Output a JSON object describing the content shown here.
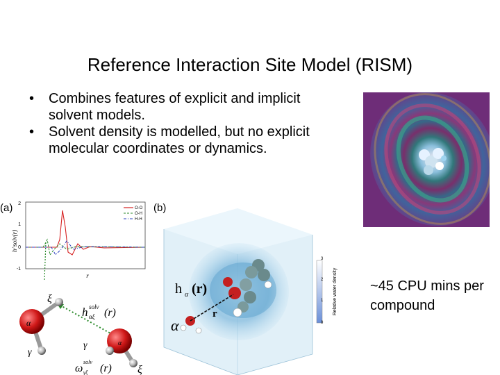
{
  "slide": {
    "title": "Reference Interaction Site Model (RISM)",
    "bullets": [
      "Combines features of explicit and implicit solvent models.",
      "Solvent density is modelled, but no explicit molecular coordinates or dynamics."
    ],
    "cost_note": "~45 CPU mins per compound"
  },
  "figure": {
    "panel_a_label": "(a)",
    "panel_b_label": "(b)",
    "plot": {
      "ylabel": "h^solv(r)",
      "xlabel": "r",
      "yticks": [
        "2",
        "1",
        "0",
        "-1"
      ],
      "legend": [
        "O-O",
        "O-H",
        "H-H"
      ],
      "series_colors": [
        "#d62020",
        "#2a8a2a",
        "#2a3fbf"
      ]
    },
    "molecule_labels": {
      "xi_top": "ξ",
      "alpha": "α",
      "gamma_left": "γ",
      "h_label": "h",
      "h_sub": "αξ",
      "h_sup": "solv",
      "h_arg": "(r)",
      "gamma_right": "γ",
      "o_right": "α",
      "omega": "ω",
      "omega_sub": "γξ",
      "omega_sup": "solv",
      "omega_arg": "(r)",
      "xi_bottom": "ξ"
    },
    "cube": {
      "h_label": "h",
      "h_sub": "α",
      "h_arg": "(r)",
      "r_label": "r",
      "alpha_label": "α",
      "colorbar_label": "Relative water density",
      "colorbar_ticks": [
        "3",
        "2",
        "1",
        "0"
      ]
    }
  }
}
